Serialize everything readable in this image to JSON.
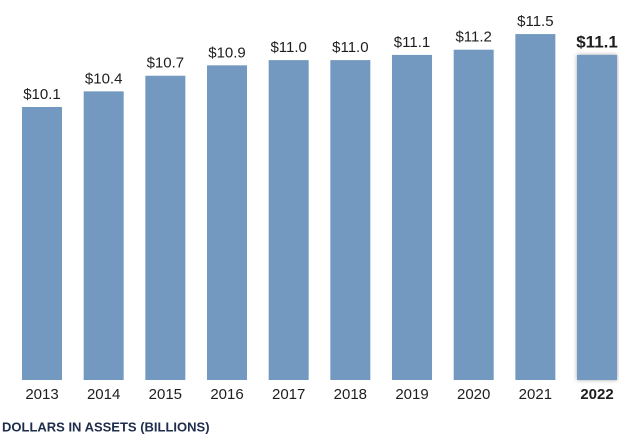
{
  "chart_data": {
    "type": "bar",
    "categories": [
      "2013",
      "2014",
      "2015",
      "2016",
      "2017",
      "2018",
      "2019",
      "2020",
      "2021",
      "2022"
    ],
    "values": [
      10.1,
      10.4,
      10.7,
      10.9,
      11.0,
      11.0,
      11.1,
      11.2,
      11.5,
      11.1
    ],
    "value_labels": [
      "$10.1",
      "$10.4",
      "$10.7",
      "$10.9",
      "$11.0",
      "$11.0",
      "$11.1",
      "$11.2",
      "$11.5",
      "$11.1"
    ],
    "emphasis": [
      false,
      false,
      false,
      false,
      false,
      false,
      false,
      false,
      false,
      true
    ],
    "color": "#7399c0",
    "ylim": [
      4.86,
      11.77
    ],
    "note": "DOLLARS IN ASSETS (BILLIONS)"
  }
}
